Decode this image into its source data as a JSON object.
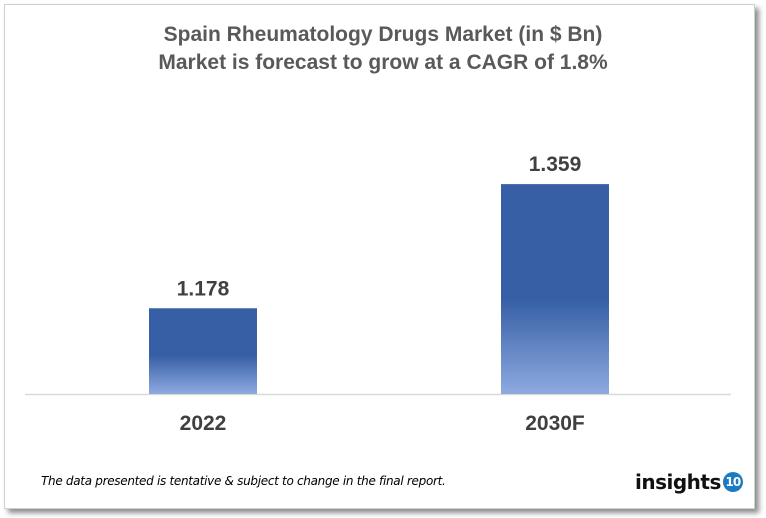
{
  "chart_data": {
    "type": "bar",
    "title": "Spain Rheumatology  Drugs Market (in $ Bn)",
    "subtitle": "Market is forecast to grow at a CAGR of 1.8%",
    "categories": [
      "2022",
      "2030F"
    ],
    "values": [
      1.178,
      1.359
    ],
    "data_labels": [
      "1.178",
      "1.359"
    ],
    "xlabel": "",
    "ylabel": "",
    "ylim": [
      1.053,
      1.4
    ],
    "grid": false,
    "bar_color": "#365fa5",
    "bar_gradient_bottom": "#8eaae0"
  },
  "footer": {
    "note": "The data presented is tentative & subject to change in the final report.",
    "logo_text": "insights",
    "logo_badge": "10"
  }
}
